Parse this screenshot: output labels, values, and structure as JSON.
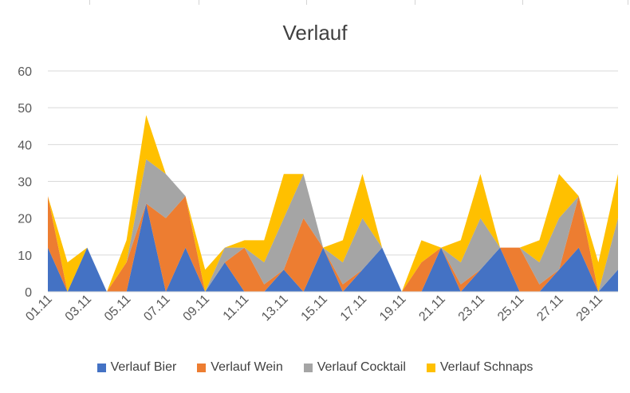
{
  "chart_data": {
    "type": "area",
    "stacked": true,
    "title": "Verlauf",
    "xlabel": "",
    "ylabel": "",
    "ylim": [
      0,
      60
    ],
    "yticks": [
      "0",
      "10",
      "20",
      "30",
      "40",
      "50",
      "60"
    ],
    "grid": true,
    "legend_position": "bottom",
    "x": [
      "01.11",
      "02.11",
      "03.11",
      "04.11",
      "05.11",
      "06.11",
      "07.11",
      "08.11",
      "09.11",
      "10.11",
      "11.11",
      "12.11",
      "13.11",
      "14.11",
      "15.11",
      "16.11",
      "17.11",
      "18.11",
      "19.11",
      "20.11",
      "21.11",
      "22.11",
      "23.11",
      "24.11",
      "25.11",
      "26.11",
      "27.11",
      "28.11",
      "29.11",
      "30.11"
    ],
    "xtick_labels": [
      "01.11",
      "03.11",
      "05.11",
      "07.11",
      "09.11",
      "11.11",
      "13.11",
      "15.11",
      "17.11",
      "19.11",
      "21.11",
      "23.11",
      "25.11",
      "27.11",
      "29.11"
    ],
    "series": [
      {
        "name": "Verlauf Bier",
        "color": "#4472c4",
        "values": [
          12,
          0,
          12,
          0,
          0,
          24,
          0,
          12,
          0,
          8,
          0,
          0,
          6,
          0,
          12,
          0,
          6,
          12,
          0,
          0,
          12,
          0,
          6,
          12,
          0,
          0,
          6,
          12,
          0,
          6
        ]
      },
      {
        "name": "Verlauf Wein",
        "color": "#ed7d31",
        "values": [
          14,
          0,
          0,
          0,
          8,
          0,
          20,
          14,
          0,
          0,
          12,
          2,
          0,
          20,
          0,
          2,
          0,
          0,
          0,
          8,
          0,
          2,
          0,
          0,
          12,
          2,
          0,
          14,
          0,
          0
        ]
      },
      {
        "name": "Verlauf Cocktail",
        "color": "#a5a5a5",
        "values": [
          0,
          0,
          0,
          0,
          0,
          12,
          12,
          0,
          0,
          4,
          0,
          6,
          14,
          12,
          0,
          6,
          14,
          0,
          0,
          0,
          0,
          6,
          14,
          0,
          0,
          6,
          14,
          0,
          0,
          14
        ]
      },
      {
        "name": "Verlauf Schnaps",
        "color": "#ffc000",
        "values": [
          0,
          8,
          0,
          0,
          6,
          12,
          0,
          0,
          6,
          0,
          2,
          6,
          12,
          0,
          0,
          6,
          12,
          0,
          0,
          6,
          0,
          6,
          12,
          0,
          0,
          6,
          12,
          0,
          8,
          12
        ]
      }
    ]
  }
}
